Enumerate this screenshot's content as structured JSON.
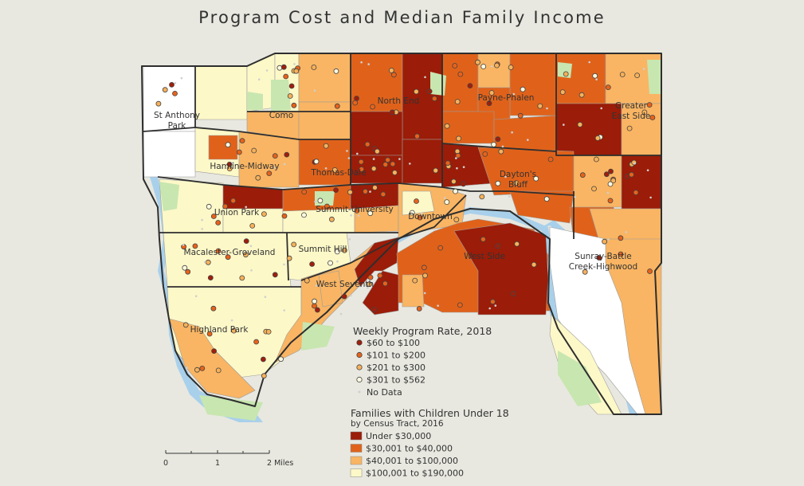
{
  "title": "Program Cost and Median Family Income",
  "colors": {
    "background": "#e8e8e0",
    "water": "#a9d0eb",
    "park": "#c8e6b0",
    "no_data_area": "#ffffff",
    "boundary": "#2e2e2e",
    "dot_outline": "#444444"
  },
  "neighborhoods": [
    "St Anthony\nPark",
    "Como",
    "North End",
    "Payne-Phalen",
    "Greater\nEast Side",
    "Hamline-Midway",
    "Thomas-Dale",
    "Dayton's\nBluff",
    "Union Park",
    "Summit-University",
    "Downtown",
    "Macalester-Groveland",
    "Summit Hill",
    "West Side",
    "Sunray-Battle\nCreek-Highwood",
    "West Seventh",
    "Highland Park"
  ],
  "legend_program": {
    "title": "Weekly Program Rate, 2018",
    "items": [
      {
        "label": "$60 to $100",
        "color": "#a11e0b"
      },
      {
        "label": "$101 to $200",
        "color": "#e8621a"
      },
      {
        "label": "$201 to $300",
        "color": "#f7b15a"
      },
      {
        "label": "$301 to $562",
        "color": "#fffbe0"
      },
      {
        "label": "No Data",
        "color": "#cfcfcf"
      }
    ]
  },
  "legend_income": {
    "title": "Families with Children Under 18",
    "subtitle": "by Census Tract, 2016",
    "items": [
      {
        "label": "Under $30,000",
        "color": "#9b1c08"
      },
      {
        "label": "$30,001 to $40,000",
        "color": "#e0621a"
      },
      {
        "label": "$40,001 to $100,000",
        "color": "#f9b563"
      },
      {
        "label": "$100,001 to $190,000",
        "color": "#fcf8c8"
      }
    ]
  },
  "scale_bar": {
    "ticks": [
      "0",
      "1",
      "2 Miles"
    ]
  }
}
